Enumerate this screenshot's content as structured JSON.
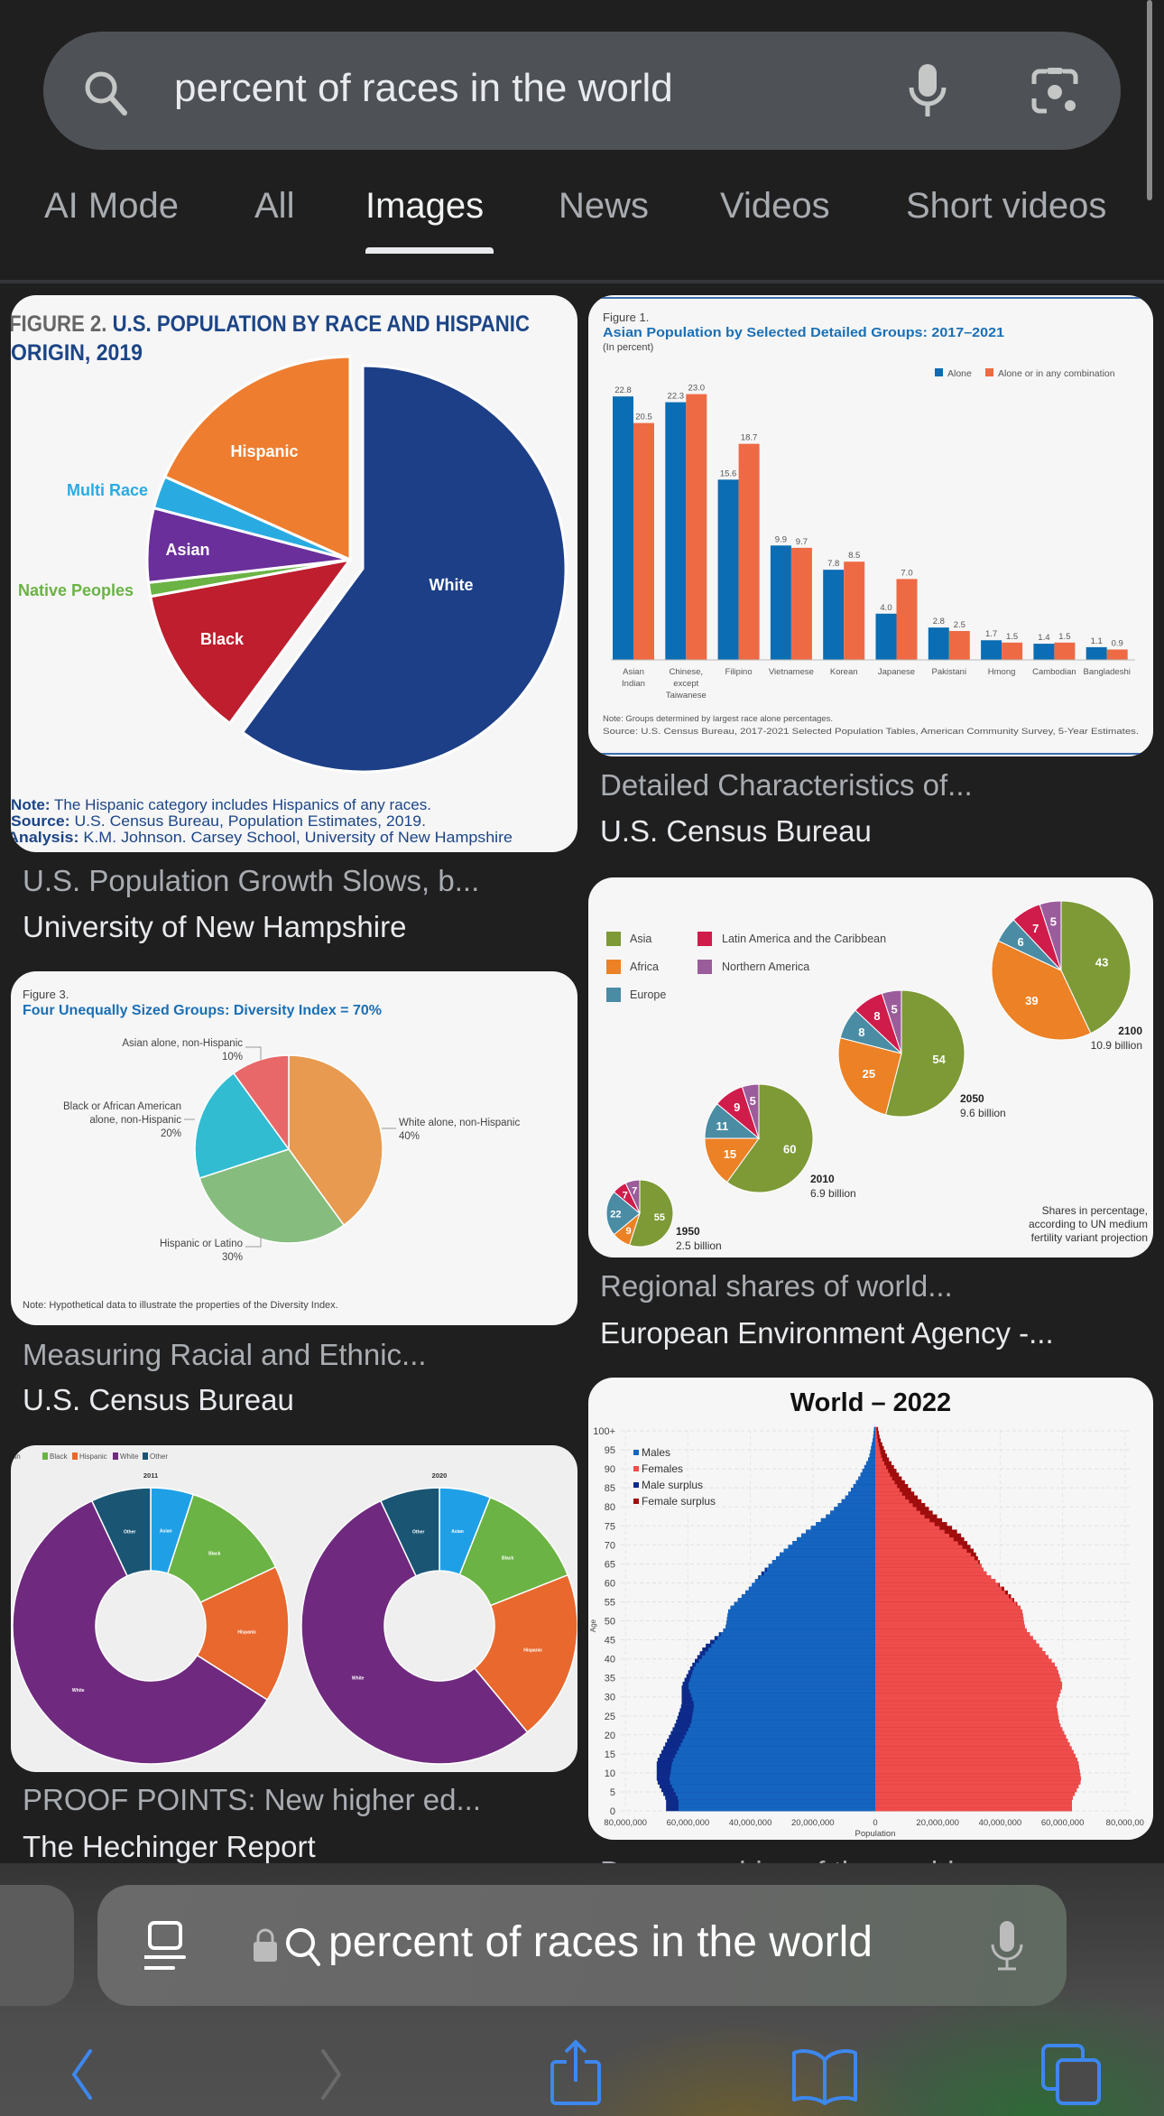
{
  "search": {
    "query": "percent of races in the world"
  },
  "tabs": [
    {
      "label": "AI Mode"
    },
    {
      "label": "All"
    },
    {
      "label": "Images"
    },
    {
      "label": "News"
    },
    {
      "label": "Videos"
    },
    {
      "label": "Short videos"
    }
  ],
  "results": [
    {
      "title": "U.S. Population Growth Slows, b...",
      "source": "University of New Hampshire",
      "image": {
        "figure": "FIGURE 2.",
        "title1": " U.S. POPULATION BY RACE AND HISPANIC",
        "title2": "ORIGIN, 2019",
        "slices": [
          {
            "label": "White",
            "value": 60.1,
            "color": "#1d3f87"
          },
          {
            "label": "Black",
            "value": 12.0,
            "color": "#be1e2d"
          },
          {
            "label": "Native Peoples",
            "value": 1.1,
            "color": "#6ab344"
          },
          {
            "label": "Asian",
            "value": 5.9,
            "color": "#6a2f9a"
          },
          {
            "label": "Multi Race",
            "value": 2.6,
            "color": "#29abe2"
          },
          {
            "label": "Hispanic",
            "value": 18.3,
            "color": "#ee7d2f"
          }
        ],
        "notes": [
          {
            "k": "Note:",
            "v": " The Hispanic category includes Hispanics of any races."
          },
          {
            "k": "Source:",
            "v": " U.S. Census Bureau, Population Estimates, 2019."
          },
          {
            "k": "Analysis:",
            "v": " K.M. Johnson. Carsey School, University of New Hampshire"
          }
        ]
      }
    },
    {
      "title": "Detailed Characteristics of...",
      "source": "U.S. Census Bureau",
      "image": {
        "figure": "Figure 1.",
        "title": "Asian Population by Selected Detailed Groups: 2017–2021",
        "subtitle": "(In percent)",
        "legend": [
          {
            "label": "Alone",
            "color": "#0b6db3"
          },
          {
            "label": "Alone or in any combination",
            "color": "#ee6a45"
          }
        ],
        "groups": [
          {
            "label": [
              "Asian",
              "Indian"
            ],
            "alone": 22.8,
            "combo": 20.5
          },
          {
            "label": [
              "Chinese,",
              "except",
              "Taiwanese"
            ],
            "alone": 22.3,
            "combo": 23.0
          },
          {
            "label": [
              "Filipino"
            ],
            "alone": 15.6,
            "combo": 18.7
          },
          {
            "label": [
              "Vietnamese"
            ],
            "alone": 9.9,
            "combo": 9.7
          },
          {
            "label": [
              "Korean"
            ],
            "alone": 7.8,
            "combo": 8.5
          },
          {
            "label": [
              "Japanese"
            ],
            "alone": 4.0,
            "combo": 7.0
          },
          {
            "label": [
              "Pakistani"
            ],
            "alone": 2.8,
            "combo": 2.5
          },
          {
            "label": [
              "Hmong"
            ],
            "alone": 1.7,
            "combo": 1.5
          },
          {
            "label": [
              "Cambodian"
            ],
            "alone": 1.4,
            "combo": 1.5
          },
          {
            "label": [
              "Bangladeshi"
            ],
            "alone": 1.1,
            "combo": 0.9
          }
        ],
        "note": "Note: Groups determined by largest race alone percentages.",
        "source": "Source: U.S. Census Bureau, 2017-2021 Selected Population Tables, American Community Survey, 5-Year Estimates."
      }
    },
    {
      "title": "Measuring Racial and Ethnic...",
      "source": "U.S. Census Bureau",
      "image": {
        "figure": "Figure 3.",
        "title": "Four Unequally Sized Groups: Diversity Index = 70%",
        "slices": [
          {
            "l1": "White alone, non-Hispanic",
            "l2": "",
            "pct": "40%",
            "value": 40,
            "color": "#e89a50"
          },
          {
            "l1": "Hispanic or Latino",
            "l2": "",
            "pct": "30%",
            "value": 30,
            "color": "#86bd7e"
          },
          {
            "l1": "Black or African American",
            "l2": "alone, non-Hispanic",
            "pct": "20%",
            "value": 20,
            "color": "#31bcd2"
          },
          {
            "l1": "Asian alone, non-Hispanic",
            "l2": "",
            "pct": "10%",
            "value": 10,
            "color": "#e8686a"
          }
        ],
        "note": "Note: Hypothetical data to illustrate the properties of the Diversity Index."
      }
    },
    {
      "title": "Regional shares of world...",
      "source": "European Environment Agency -...",
      "image": {
        "legend": [
          {
            "label": "Asia",
            "color": "#7d9a36"
          },
          {
            "label": "Africa",
            "color": "#ec8125"
          },
          {
            "label": "Europe",
            "color": "#4a8ca4"
          },
          {
            "label": "Latin America and the Caribbean",
            "color": "#d01c4b"
          },
          {
            "label": "Northern America",
            "color": "#9b5c9b"
          }
        ],
        "pies": [
          {
            "year": "1950",
            "total": "2.5 billion",
            "values": [
              55,
              9,
              22,
              7,
              7
            ]
          },
          {
            "year": "2010",
            "total": "6.9 billion",
            "values": [
              60,
              15,
              11,
              9,
              5
            ]
          },
          {
            "year": "2050",
            "total": "9.6 billion",
            "values": [
              54,
              25,
              8,
              8,
              5
            ]
          },
          {
            "year": "2100",
            "total": "10.9 billion",
            "values": [
              43,
              39,
              6,
              7,
              5
            ]
          }
        ],
        "note": [
          "Shares in percentage,",
          "according to UN medium",
          "fertility variant projection"
        ]
      }
    },
    {
      "title": "PROOF POINTS: New higher ed...",
      "source": "The Hechinger Report",
      "image": {
        "legend": [
          {
            "label": "ian",
            "color": ""
          },
          {
            "label": "Black",
            "color": "#6bb344"
          },
          {
            "label": "Hispanic",
            "color": "#e8682d"
          },
          {
            "label": "White",
            "color": "#6f2a7f"
          },
          {
            "label": "Other",
            "color": "#1a5674"
          }
        ],
        "categories": [
          {
            "label": "Asian",
            "color": "#1fa0e6"
          },
          {
            "label": "Black",
            "color": "#6bb344"
          },
          {
            "label": "Hispanic",
            "color": "#e8682d"
          },
          {
            "label": "White",
            "color": "#6f2a7f"
          },
          {
            "label": "Other",
            "color": "#1a5674"
          }
        ],
        "charts": [
          {
            "year": "2011",
            "values": [
              5,
              13,
              16,
              59,
              7
            ]
          },
          {
            "year": "2020",
            "values": [
              6,
              13,
              20,
              54,
              7
            ]
          }
        ]
      }
    },
    {
      "title": "Demographics of the world...",
      "source": "",
      "image": {
        "title": "World – 2022",
        "legend": [
          {
            "label": "Males",
            "color": "#1565c0"
          },
          {
            "label": "Females",
            "color": "#ef4c4c"
          },
          {
            "label": "Male surplus",
            "color": "#0d2a8a"
          },
          {
            "label": "Female surplus",
            "color": "#a00d0d"
          }
        ],
        "ylabel": "Age",
        "xlabel": "Population",
        "age_labels": [
          "0",
          "5",
          "10",
          "15",
          "20",
          "25",
          "30",
          "35",
          "40",
          "45",
          "50",
          "55",
          "60",
          "65",
          "70",
          "75",
          "80",
          "85",
          "90",
          "95",
          "100+"
        ],
        "x_labels": [
          "80,000,000",
          "60,000,000",
          "40,000,000",
          "20,000,000",
          "0",
          "20,000,000",
          "40,000,000",
          "60,000,000",
          "80,000,00"
        ],
        "males_millions": [
          67,
          70,
          70,
          67,
          64,
          62,
          62,
          59,
          55,
          48,
          47,
          41,
          36,
          30,
          23,
          15,
          9,
          5,
          2,
          0.7,
          0.1
        ],
        "females_millions": [
          63,
          66,
          65,
          62,
          59,
          58,
          60,
          58,
          53,
          48,
          47,
          42,
          35,
          32,
          27,
          19,
          13,
          8,
          4,
          1.5,
          0.3
        ]
      }
    }
  ],
  "browser": {
    "address": "percent of races in the world"
  }
}
